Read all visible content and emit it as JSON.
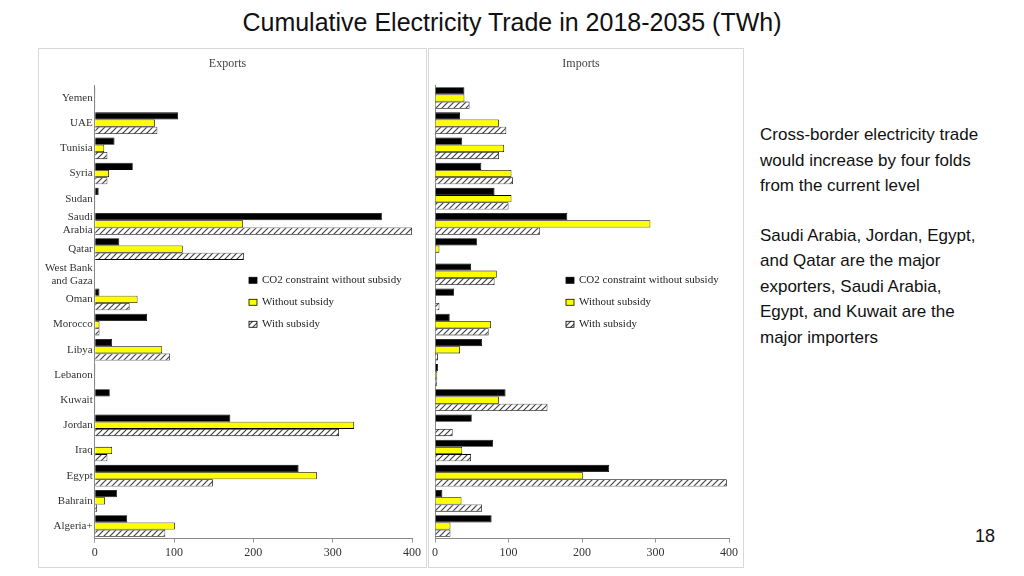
{
  "page": {
    "title": "Cumulative Electricity Trade in 2018-2035 (TWh)",
    "text": [
      "Cross-border electricity trade would increase by four folds from the current level",
      "Saudi Arabia, Jordan, Egypt, and Qatar are the major exporters, Saudi Arabia, Egypt, and Kuwait are the major importers"
    ],
    "page_number": "18"
  },
  "chart_data": [
    {
      "type": "bar",
      "title": "Exports",
      "orientation": "horizontal",
      "grid": false,
      "legend": "center",
      "categories": [
        "Yemen",
        "UAE",
        "Tunisia",
        "Syria",
        "Sudan",
        "Saudi Arabia",
        "Qatar",
        "West Bank and Gaza",
        "Oman",
        "Morocco",
        "Libya",
        "Lebanon",
        "Kuwait",
        "Jordan",
        "Iraq",
        "Egypt",
        "Bahrain",
        "Algeria+"
      ],
      "series": [
        {
          "name": "CO2 constraint without subsidy",
          "color": "#000000",
          "marker": "solid",
          "values": [
            1,
            105,
            25,
            48,
            5,
            362,
            31,
            0,
            6,
            66,
            22,
            1,
            19,
            171,
            0,
            257,
            28,
            41
          ]
        },
        {
          "name": "Without subsidy",
          "color": "#ffff00",
          "marker": "solid",
          "values": [
            1,
            76,
            12,
            18,
            1,
            187,
            111,
            0,
            54,
            6,
            85,
            1,
            1,
            327,
            22,
            280,
            13,
            101
          ]
        },
        {
          "name": "With subsidy",
          "color": "#444444",
          "marker": "hatch",
          "values": [
            1,
            79,
            16,
            16,
            1,
            400,
            188,
            0,
            44,
            6,
            95,
            1,
            1,
            308,
            16,
            149,
            3,
            89
          ]
        }
      ],
      "xlim": [
        0,
        400
      ],
      "xticks": [
        0,
        100,
        200,
        300,
        400
      ]
    },
    {
      "type": "bar",
      "title": "Imports",
      "orientation": "horizontal",
      "grid": false,
      "legend": "center",
      "tick_labels": "x",
      "categories": [
        "Yemen",
        "UAE",
        "Tunisia",
        "Syria",
        "Sudan",
        "Saudi Arabia",
        "Qatar",
        "West Bank and Gaza",
        "Oman",
        "Morocco",
        "Libya",
        "Lebanon",
        "Kuwait",
        "Jordan",
        "Iraq",
        "Egypt",
        "Bahrain",
        "Algeria+"
      ],
      "series": [
        {
          "name": "CO2 constraint without subsidy",
          "color": "#000000",
          "marker": "solid",
          "values": [
            40,
            34,
            37,
            63,
            81,
            180,
            57,
            49,
            26,
            20,
            64,
            4,
            96,
            50,
            79,
            237,
            10,
            77
          ]
        },
        {
          "name": "Without subsidy",
          "color": "#ffff00",
          "marker": "solid",
          "values": [
            40,
            87,
            94,
            104,
            104,
            293,
            6,
            84,
            0,
            76,
            34,
            3,
            87,
            0,
            37,
            201,
            36,
            21
          ]
        },
        {
          "name": "With subsidy",
          "color": "#444444",
          "marker": "hatch",
          "values": [
            47,
            97,
            87,
            106,
            100,
            143,
            0,
            81,
            6,
            73,
            4,
            3,
            153,
            24,
            49,
            397,
            64,
            21
          ]
        }
      ],
      "xlim": [
        0,
        400
      ],
      "xticks": [
        0,
        100,
        200,
        300,
        400
      ]
    }
  ]
}
